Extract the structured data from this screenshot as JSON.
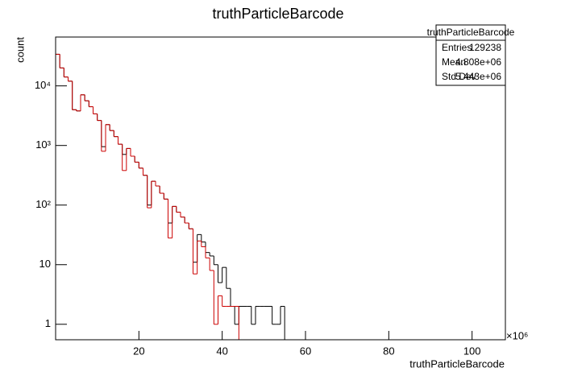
{
  "chart_data": {
    "type": "histogram",
    "title": "truthParticleBarcode",
    "x_label": "truthParticleBarcode",
    "y_label": "count",
    "x_exponent": "×10⁶",
    "log_y": true,
    "xlim": [
      0,
      108
    ],
    "ylim": [
      0.55,
      66000
    ],
    "xticks": [
      20,
      40,
      60,
      80,
      100
    ],
    "yticks": [
      1,
      10,
      {
        "value": 100,
        "label": "10²"
      },
      {
        "value": 1000,
        "label": "10³"
      },
      {
        "value": 10000,
        "label": "10⁴"
      }
    ],
    "bins": [
      0,
      1,
      2,
      3,
      4,
      5,
      6,
      7,
      8,
      9,
      10,
      11,
      12,
      13,
      14,
      15,
      16,
      17,
      18,
      19,
      20,
      21,
      22,
      23,
      24,
      25,
      26,
      27,
      28,
      29,
      30,
      31,
      32,
      33,
      34,
      35,
      36,
      37,
      38,
      39,
      40,
      41,
      42,
      43,
      44,
      45,
      46,
      47,
      48,
      49,
      50,
      51,
      52,
      53,
      54,
      55,
      56,
      57,
      58,
      59,
      60,
      61,
      62,
      63,
      64,
      65,
      66,
      67,
      68,
      69,
      70,
      71,
      72,
      73,
      74,
      75,
      76,
      77,
      78,
      79,
      80,
      81,
      82,
      83,
      84,
      85,
      86,
      87,
      88,
      89,
      90,
      91,
      92,
      93,
      94,
      95,
      96,
      97,
      98,
      99,
      100,
      101,
      102,
      103,
      104,
      105,
      106,
      107,
      108
    ],
    "series": [
      {
        "color": "#000000",
        "values": [
          33900,
          20000,
          14100,
          12000,
          3980,
          3800,
          7080,
          5620,
          4470,
          3390,
          2630,
          955,
          2240,
          1780,
          1410,
          1050,
          708,
          891,
          661,
          525,
          417,
          316,
          100,
          251,
          209,
          158,
          126,
          50,
          95,
          76,
          63,
          50,
          40,
          11,
          32,
          24,
          16,
          14,
          10,
          5,
          9,
          4,
          2,
          1,
          2,
          2,
          2,
          1,
          2,
          2,
          2,
          2,
          1,
          1,
          2,
          0,
          0,
          0,
          0,
          0,
          0,
          0,
          0,
          0,
          0,
          0,
          0,
          0,
          0,
          0,
          0,
          0,
          0,
          0,
          0,
          0,
          0,
          0,
          0,
          0,
          0,
          0,
          0,
          0,
          0,
          0,
          0,
          0,
          0,
          0,
          0,
          0,
          0,
          0,
          0,
          0,
          0,
          0,
          0,
          0,
          0,
          0,
          0,
          0,
          0,
          0,
          0,
          0
        ]
      },
      {
        "color": "#cc0000",
        "values": [
          33900,
          20000,
          14100,
          12000,
          3980,
          3800,
          7080,
          5620,
          4470,
          3390,
          2630,
          800,
          2240,
          1780,
          1410,
          1050,
          380,
          891,
          661,
          525,
          417,
          316,
          90,
          251,
          209,
          158,
          126,
          28,
          95,
          76,
          63,
          50,
          40,
          7,
          25,
          20,
          13,
          8,
          1,
          3,
          2,
          2,
          2,
          2,
          0,
          0,
          0,
          0,
          0,
          0,
          0,
          0,
          0,
          0,
          0,
          0,
          0,
          0,
          0,
          0,
          0,
          0,
          0,
          0,
          0,
          0,
          0,
          0,
          0,
          0,
          0,
          0,
          0,
          0,
          0,
          0,
          0,
          0,
          0,
          0,
          0,
          0,
          0,
          0,
          0,
          0,
          0,
          0,
          0,
          0,
          0,
          0,
          0,
          0,
          0,
          0,
          0,
          0,
          0,
          0,
          0,
          0,
          0,
          0,
          0,
          0,
          0,
          0
        ]
      }
    ]
  },
  "stats": {
    "title": "truthParticleBarcode",
    "rows": [
      [
        "Entries",
        "129238"
      ],
      [
        "Mean",
        "4.808e+06"
      ],
      [
        "Std Dev",
        "5.443e+06"
      ]
    ]
  }
}
